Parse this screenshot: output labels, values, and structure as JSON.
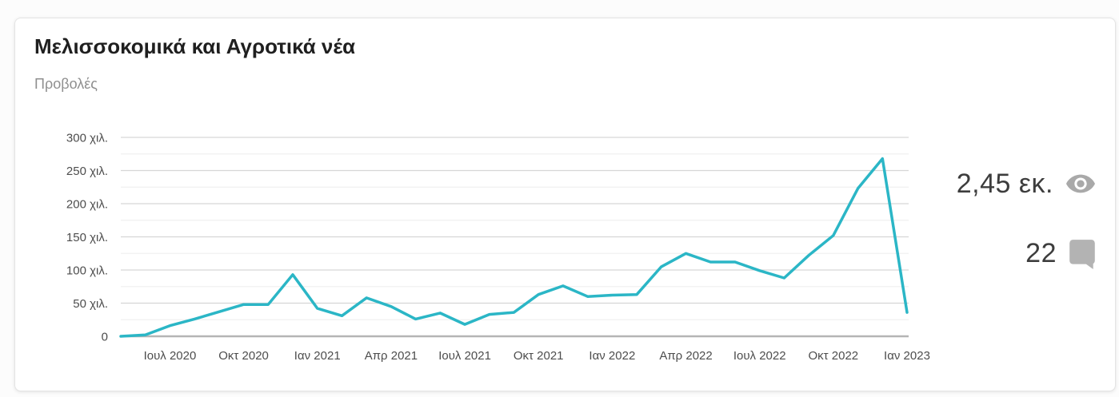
{
  "card": {
    "title": "Μελισσοκομικά και Αγροτικά νέα",
    "subtitle": "Προβολές"
  },
  "metrics": {
    "views": {
      "value": "2,45 εκ.",
      "icon": "eye-icon"
    },
    "comments": {
      "value": "22",
      "icon": "comment-icon"
    }
  },
  "colors": {
    "line": "#2bb6c6",
    "grid_minor": "#ededed",
    "grid_major": "#d6d6d6",
    "axis_zero": "#b5b5b5",
    "axis_text": "#4d4d4d",
    "title_text": "#1f1f1f",
    "subtitle_text": "#8f8f8f",
    "metric_text": "#3d3d3d",
    "icon_gray": "#a9a9a9",
    "card_background": "#ffffff"
  },
  "chart_data": {
    "type": "line",
    "title": "Μελισσοκομικά και Αγροτικά νέα",
    "ylabel": "Προβολές",
    "unit": "χιλ. (thousands of views)",
    "grid": "horizontal, minor every 25 χιλ., major every 50 χιλ.",
    "legend_position": "none",
    "ylim_thousands": [
      0,
      300
    ],
    "x": [
      "Μαΐ 2020",
      "Ιουν 2020",
      "Ιουλ 2020",
      "Αυγ 2020",
      "Σεπ 2020",
      "Οκτ 2020",
      "Νοε 2020",
      "Δεκ 2020",
      "Ιαν 2021",
      "Φεβ 2021",
      "Μαρ 2021",
      "Απρ 2021",
      "Μαΐ 2021",
      "Ιουν 2021",
      "Ιουλ 2021",
      "Αυγ 2021",
      "Σεπ 2021",
      "Οκτ 2021",
      "Νοε 2021",
      "Δεκ 2021",
      "Ιαν 2022",
      "Φεβ 2022",
      "Μαρ 2022",
      "Απρ 2022",
      "Μαΐ 2022",
      "Ιουν 2022",
      "Ιουλ 2022",
      "Αυγ 2022",
      "Σεπ 2022",
      "Οκτ 2022",
      "Νοε 2022",
      "Δεκ 2022",
      "Ιαν 2023"
    ],
    "values_thousands": [
      0,
      2,
      16,
      26,
      37,
      48,
      48,
      93,
      42,
      31,
      58,
      45,
      26,
      35,
      18,
      33,
      36,
      63,
      76,
      60,
      62,
      63,
      105,
      125,
      112,
      112,
      99,
      88,
      122,
      152,
      223,
      268,
      36
    ],
    "y_ticks": [
      {
        "label": "300 χιλ.",
        "value": 300
      },
      {
        "label": "250 χιλ.",
        "value": 250
      },
      {
        "label": "200 χιλ.",
        "value": 200
      },
      {
        "label": "150 χιλ.",
        "value": 150
      },
      {
        "label": "100 χιλ.",
        "value": 100
      },
      {
        "label": "50 χιλ.",
        "value": 50
      },
      {
        "label": "0",
        "value": 0
      }
    ],
    "x_ticks": [
      {
        "label": "Ιουλ 2020",
        "index": 2
      },
      {
        "label": "Οκτ 2020",
        "index": 5
      },
      {
        "label": "Ιαν 2021",
        "index": 8
      },
      {
        "label": "Απρ 2021",
        "index": 11
      },
      {
        "label": "Ιουλ 2021",
        "index": 14
      },
      {
        "label": "Οκτ 2021",
        "index": 17
      },
      {
        "label": "Ιαν 2022",
        "index": 20
      },
      {
        "label": "Απρ 2022",
        "index": 23
      },
      {
        "label": "Ιουλ 2022",
        "index": 26
      },
      {
        "label": "Οκτ 2022",
        "index": 29
      },
      {
        "label": "Ιαν 2023",
        "index": 32
      }
    ]
  }
}
